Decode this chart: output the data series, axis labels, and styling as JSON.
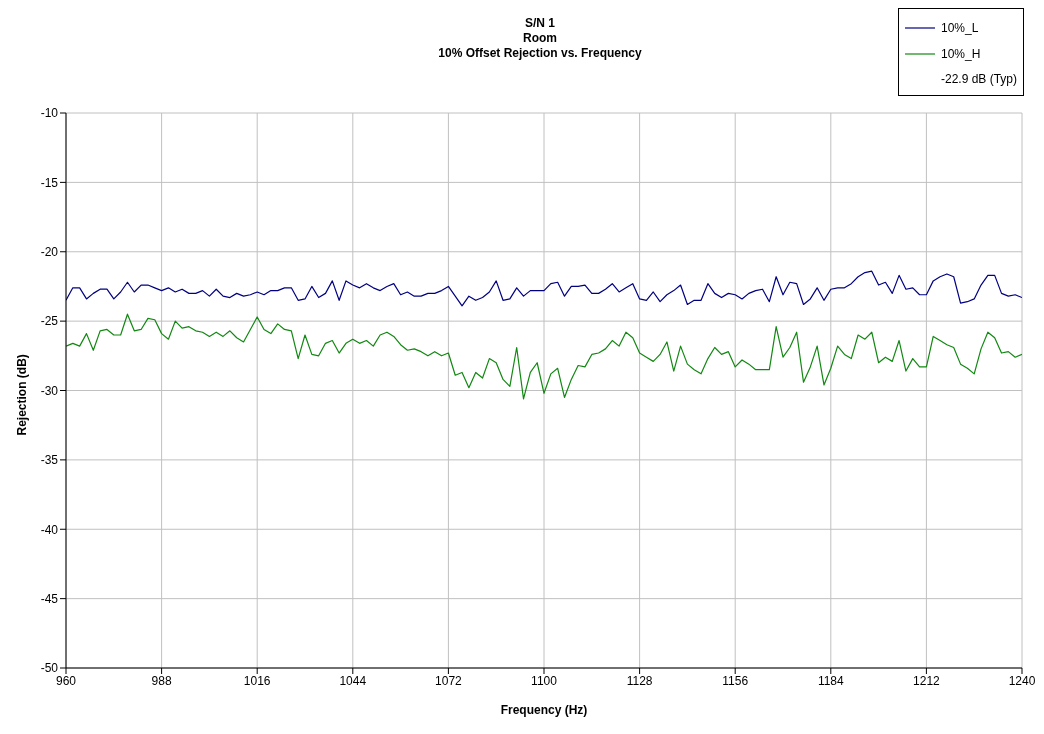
{
  "chart_data": {
    "type": "line",
    "title": "S/N 1\nRoom\n10% Offset Rejection vs. Frequency",
    "xlabel": "Frequency (Hz)",
    "ylabel": "Rejection (dB)",
    "x": [
      960,
      962,
      964,
      966,
      968,
      970,
      972,
      974,
      976,
      978,
      980,
      982,
      984,
      986,
      988,
      990,
      992,
      994,
      996,
      998,
      1000,
      1002,
      1004,
      1006,
      1008,
      1010,
      1012,
      1014,
      1016,
      1018,
      1020,
      1022,
      1024,
      1026,
      1028,
      1030,
      1032,
      1034,
      1036,
      1038,
      1040,
      1042,
      1044,
      1046,
      1048,
      1050,
      1052,
      1054,
      1056,
      1058,
      1060,
      1062,
      1064,
      1066,
      1068,
      1070,
      1072,
      1074,
      1076,
      1078,
      1080,
      1082,
      1084,
      1086,
      1088,
      1090,
      1092,
      1094,
      1096,
      1098,
      1100,
      1102,
      1104,
      1106,
      1108,
      1110,
      1112,
      1114,
      1116,
      1118,
      1120,
      1122,
      1124,
      1126,
      1128,
      1130,
      1132,
      1134,
      1136,
      1138,
      1140,
      1142,
      1144,
      1146,
      1148,
      1150,
      1152,
      1154,
      1156,
      1158,
      1160,
      1162,
      1164,
      1166,
      1168,
      1170,
      1172,
      1174,
      1176,
      1178,
      1180,
      1182,
      1184,
      1186,
      1188,
      1190,
      1192,
      1194,
      1196,
      1198,
      1200,
      1202,
      1204,
      1206,
      1208,
      1210,
      1212,
      1214,
      1216,
      1218,
      1220,
      1222,
      1224,
      1226,
      1228,
      1230,
      1232,
      1234,
      1236,
      1238,
      1240
    ],
    "series": [
      {
        "name": "10%_L",
        "color": "#000080",
        "values": [
          -23.5,
          -22.6,
          -22.6,
          -23.4,
          -23.0,
          -22.7,
          -22.7,
          -23.4,
          -22.9,
          -22.2,
          -22.9,
          -22.4,
          -22.4,
          -22.6,
          -22.8,
          -22.6,
          -22.9,
          -22.7,
          -23.0,
          -23.0,
          -22.8,
          -23.2,
          -22.7,
          -23.2,
          -23.3,
          -23.0,
          -23.2,
          -23.1,
          -22.9,
          -23.1,
          -22.8,
          -22.8,
          -22.6,
          -22.6,
          -23.5,
          -23.4,
          -22.5,
          -23.3,
          -23.0,
          -22.1,
          -23.5,
          -22.1,
          -22.4,
          -22.6,
          -22.3,
          -22.6,
          -22.8,
          -22.5,
          -22.3,
          -23.1,
          -22.9,
          -23.2,
          -23.2,
          -23.0,
          -23.0,
          -22.8,
          -22.5,
          -23.2,
          -23.9,
          -23.2,
          -23.5,
          -23.3,
          -22.9,
          -22.1,
          -23.5,
          -23.4,
          -22.6,
          -23.2,
          -22.8,
          -22.8,
          -22.8,
          -22.3,
          -22.2,
          -23.2,
          -22.5,
          -22.5,
          -22.4,
          -23.0,
          -23.0,
          -22.7,
          -22.3,
          -22.9,
          -22.6,
          -22.3,
          -23.4,
          -23.5,
          -22.9,
          -23.6,
          -23.1,
          -22.8,
          -22.4,
          -23.8,
          -23.5,
          -23.5,
          -22.3,
          -23.0,
          -23.3,
          -23.0,
          -23.1,
          -23.4,
          -23.0,
          -22.8,
          -22.7,
          -23.6,
          -21.8,
          -23.1,
          -22.2,
          -22.3,
          -23.8,
          -23.4,
          -22.6,
          -23.5,
          -22.7,
          -22.6,
          -22.6,
          -22.3,
          -21.8,
          -21.5,
          -21.4,
          -22.4,
          -22.2,
          -23.0,
          -21.7,
          -22.7,
          -22.6,
          -23.1,
          -23.1,
          -22.1,
          -21.8,
          -21.6,
          -21.8,
          -23.7,
          -23.6,
          -23.4,
          -22.4,
          -21.7,
          -21.7,
          -23.0,
          -23.2,
          -23.1,
          -23.3
        ]
      },
      {
        "name": "10%_H",
        "color": "#118811",
        "values": [
          -26.8,
          -26.6,
          -26.8,
          -25.9,
          -27.1,
          -25.7,
          -25.6,
          -26.0,
          -26.0,
          -24.5,
          -25.7,
          -25.6,
          -24.8,
          -24.9,
          -25.9,
          -26.3,
          -25.0,
          -25.5,
          -25.4,
          -25.7,
          -25.8,
          -26.1,
          -25.8,
          -26.1,
          -25.7,
          -26.2,
          -26.5,
          -25.6,
          -24.7,
          -25.6,
          -25.9,
          -25.2,
          -25.6,
          -25.7,
          -27.7,
          -26.0,
          -27.4,
          -27.5,
          -26.6,
          -26.4,
          -27.3,
          -26.6,
          -26.3,
          -26.6,
          -26.4,
          -26.8,
          -26.0,
          -25.8,
          -26.1,
          -26.7,
          -27.1,
          -27.0,
          -27.2,
          -27.5,
          -27.2,
          -27.5,
          -27.3,
          -28.9,
          -28.7,
          -29.8,
          -28.7,
          -29.1,
          -27.7,
          -28.0,
          -29.2,
          -29.7,
          -26.9,
          -30.6,
          -28.7,
          -28.0,
          -30.2,
          -28.8,
          -28.4,
          -30.5,
          -29.2,
          -28.2,
          -28.3,
          -27.4,
          -27.3,
          -27.0,
          -26.4,
          -26.8,
          -25.8,
          -26.2,
          -27.3,
          -27.6,
          -27.9,
          -27.4,
          -26.5,
          -28.6,
          -26.8,
          -28.1,
          -28.5,
          -28.8,
          -27.7,
          -26.9,
          -27.4,
          -27.2,
          -28.3,
          -27.8,
          -28.1,
          -28.5,
          -28.5,
          -28.5,
          -25.4,
          -27.6,
          -26.9,
          -25.8,
          -29.4,
          -28.3,
          -26.8,
          -29.6,
          -28.4,
          -26.8,
          -27.4,
          -27.7,
          -26.0,
          -26.3,
          -25.8,
          -28.0,
          -27.6,
          -27.9,
          -26.4,
          -28.6,
          -27.7,
          -28.3,
          -28.3,
          -26.1,
          -26.4,
          -26.7,
          -26.9,
          -28.1,
          -28.4,
          -28.8,
          -27.0,
          -25.8,
          -26.2,
          -27.3,
          -27.2,
          -27.6,
          -27.4
        ]
      }
    ],
    "annotations": [
      "-22.9 dB (Typ)"
    ],
    "xlim": [
      960,
      1240
    ],
    "xticks": [
      960,
      988,
      1016,
      1044,
      1072,
      1100,
      1128,
      1156,
      1184,
      1212,
      1240
    ],
    "ylim": [
      -50,
      -10
    ],
    "yticks": [
      -50,
      -45,
      -40,
      -35,
      -30,
      -25,
      -20,
      -15,
      -10
    ],
    "grid": true,
    "legend": "top right",
    "marker": "none"
  }
}
